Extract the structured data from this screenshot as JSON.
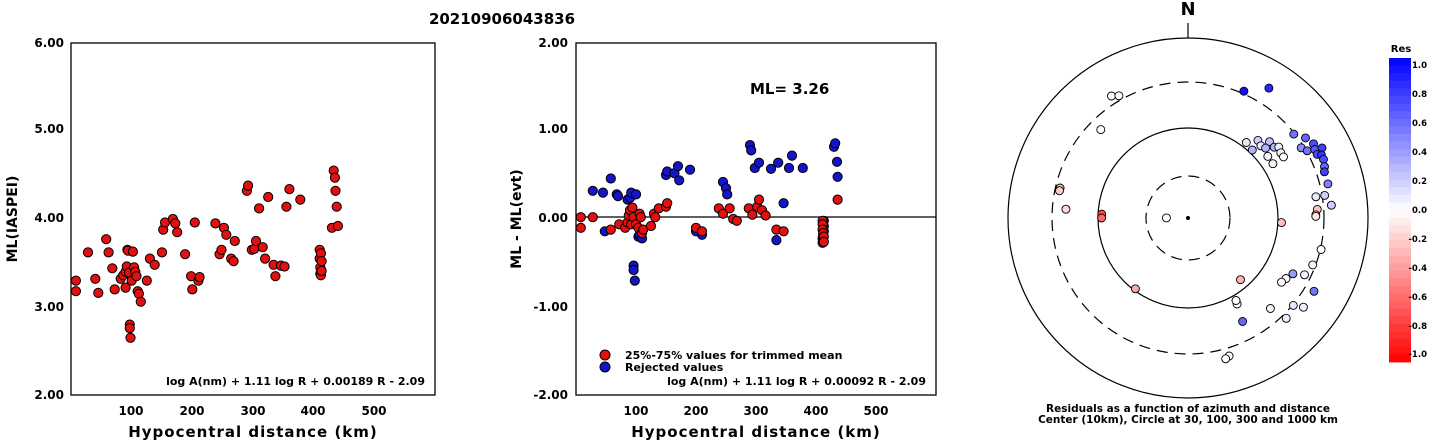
{
  "event_id": "20210906043836",
  "colors": {
    "accepted": "#e41010",
    "rejected": "#1414c8",
    "frame": "#000000"
  },
  "chart_data": [
    {
      "id": "ml-vs-distance",
      "type": "scatter",
      "xlabel": "Hypocentral distance (km)",
      "ylabel": "ML(IASPEI)",
      "xlim": [
        0,
        600
      ],
      "ylim": [
        2.0,
        6.0
      ],
      "xticks": [
        "100",
        "200",
        "300",
        "400",
        "500"
      ],
      "yticks": [
        "2.00",
        "3.00",
        "4.00",
        "5.00",
        "6.00"
      ],
      "formula": "log A(nm) + 1.11 log R + 0.00189 R - 2.09",
      "points": [
        [
          8,
          3.3
        ],
        [
          8,
          3.18
        ],
        [
          28,
          3.62
        ],
        [
          40,
          3.32
        ],
        [
          45,
          3.16
        ],
        [
          58,
          3.77
        ],
        [
          62,
          3.62
        ],
        [
          68,
          3.44
        ],
        [
          72,
          3.2
        ],
        [
          82,
          3.32
        ],
        [
          86,
          3.36
        ],
        [
          90,
          3.4
        ],
        [
          90,
          3.22
        ],
        [
          92,
          3.46
        ],
        [
          93,
          3.65
        ],
        [
          94,
          3.64
        ],
        [
          96,
          3.39
        ],
        [
          97,
          2.8
        ],
        [
          97,
          2.76
        ],
        [
          98,
          2.65
        ],
        [
          100,
          3.3
        ],
        [
          102,
          3.63
        ],
        [
          104,
          3.45
        ],
        [
          106,
          3.4
        ],
        [
          108,
          3.35
        ],
        [
          110,
          3.18
        ],
        [
          112,
          3.15
        ],
        [
          115,
          3.06
        ],
        [
          125,
          3.3
        ],
        [
          130,
          3.55
        ],
        [
          138,
          3.48
        ],
        [
          150,
          3.62
        ],
        [
          152,
          3.88
        ],
        [
          155,
          3.96
        ],
        [
          168,
          4.0
        ],
        [
          172,
          3.95
        ],
        [
          175,
          3.85
        ],
        [
          188,
          3.6
        ],
        [
          198,
          3.35
        ],
        [
          200,
          3.2
        ],
        [
          204,
          3.96
        ],
        [
          210,
          3.3
        ],
        [
          212,
          3.34
        ],
        [
          238,
          3.95
        ],
        [
          245,
          3.6
        ],
        [
          248,
          3.65
        ],
        [
          252,
          3.9
        ],
        [
          256,
          3.82
        ],
        [
          264,
          3.55
        ],
        [
          268,
          3.52
        ],
        [
          270,
          3.75
        ],
        [
          290,
          4.32
        ],
        [
          292,
          4.38
        ],
        [
          298,
          3.65
        ],
        [
          302,
          3.66
        ],
        [
          305,
          3.75
        ],
        [
          310,
          4.12
        ],
        [
          316,
          3.68
        ],
        [
          320,
          3.55
        ],
        [
          325,
          4.25
        ],
        [
          334,
          3.48
        ],
        [
          337,
          3.35
        ],
        [
          346,
          3.47
        ],
        [
          352,
          3.46
        ],
        [
          355,
          4.14
        ],
        [
          360,
          4.34
        ],
        [
          378,
          4.22
        ],
        [
          410,
          3.65
        ],
        [
          410,
          3.55
        ],
        [
          411,
          3.38
        ],
        [
          411,
          3.45
        ],
        [
          412,
          3.61
        ],
        [
          412,
          3.36
        ],
        [
          413,
          3.41
        ],
        [
          413,
          3.52
        ],
        [
          430,
          3.9
        ],
        [
          433,
          4.55
        ],
        [
          435,
          4.47
        ],
        [
          436,
          4.32
        ],
        [
          438,
          4.14
        ],
        [
          440,
          3.92
        ]
      ]
    },
    {
      "id": "residual-vs-distance",
      "type": "scatter",
      "xlabel": "Hypocentral distance (km)",
      "ylabel": "ML - ML(evt)",
      "xlim": [
        0,
        600
      ],
      "ylim": [
        -2.0,
        2.0
      ],
      "xticks": [
        "100",
        "200",
        "300",
        "400",
        "500"
      ],
      "yticks": [
        "-2.00",
        "-1.00",
        "0.00",
        "1.00",
        "2.00"
      ],
      "reference_line": 0.0,
      "annotation": "ML= 3.26",
      "legend": [
        {
          "label": "25%-75% values for trimmed mean",
          "color": "#e41010"
        },
        {
          "label": "Rejected values",
          "color": "#1414c8"
        }
      ],
      "formula": "log A(nm) + 1.11 log R + 0.00092 R - 2.09",
      "series": [
        {
          "name": "25%-75% values for trimmed mean",
          "points": [
            [
              8,
              0.02
            ],
            [
              8,
              -0.1
            ],
            [
              28,
              0.02
            ],
            [
              58,
              -0.12
            ],
            [
              72,
              -0.06
            ],
            [
              82,
              -0.1
            ],
            [
              86,
              -0.04
            ],
            [
              88,
              0.04
            ],
            [
              90,
              0.1
            ],
            [
              92,
              -0.06
            ],
            [
              94,
              0.13
            ],
            [
              96,
              0.02
            ],
            [
              100,
              -0.06
            ],
            [
              104,
              -0.1
            ],
            [
              106,
              0.06
            ],
            [
              108,
              0.02
            ],
            [
              110,
              -0.16
            ],
            [
              112,
              -0.12
            ],
            [
              125,
              -0.08
            ],
            [
              130,
              0.06
            ],
            [
              132,
              0.02
            ],
            [
              138,
              0.12
            ],
            [
              150,
              0.14
            ],
            [
              152,
              0.18
            ],
            [
              200,
              -0.1
            ],
            [
              210,
              -0.14
            ],
            [
              238,
              0.12
            ],
            [
              245,
              0.06
            ],
            [
              256,
              0.12
            ],
            [
              262,
              0.0
            ],
            [
              268,
              -0.02
            ],
            [
              288,
              0.12
            ],
            [
              294,
              0.05
            ],
            [
              302,
              0.14
            ],
            [
              305,
              0.22
            ],
            [
              310,
              0.1
            ],
            [
              316,
              0.04
            ],
            [
              334,
              -0.12
            ],
            [
              346,
              -0.14
            ],
            [
              411,
              -0.02
            ],
            [
              411,
              -0.06
            ],
            [
              411,
              -0.12
            ],
            [
              412,
              -0.16
            ],
            [
              413,
              -0.2
            ],
            [
              413,
              -0.26
            ],
            [
              436,
              0.22
            ]
          ]
        },
        {
          "name": "Rejected values",
          "points": [
            [
              28,
              0.32
            ],
            [
              45,
              0.3
            ],
            [
              48,
              -0.14
            ],
            [
              58,
              0.46
            ],
            [
              68,
              0.28
            ],
            [
              70,
              0.26
            ],
            [
              86,
              0.22
            ],
            [
              90,
              0.24
            ],
            [
              92,
              0.3
            ],
            [
              96,
              -0.53
            ],
            [
              96,
              -0.58
            ],
            [
              98,
              -0.7
            ],
            [
              100,
              0.28
            ],
            [
              104,
              -0.2
            ],
            [
              106,
              -0.18
            ],
            [
              110,
              -0.22
            ],
            [
              150,
              0.5
            ],
            [
              152,
              0.54
            ],
            [
              164,
              0.52
            ],
            [
              170,
              0.6
            ],
            [
              172,
              0.44
            ],
            [
              190,
              0.56
            ],
            [
              200,
              -0.14
            ],
            [
              210,
              -0.18
            ],
            [
              245,
              0.42
            ],
            [
              250,
              0.35
            ],
            [
              252,
              0.28
            ],
            [
              290,
              0.84
            ],
            [
              292,
              0.78
            ],
            [
              298,
              0.58
            ],
            [
              305,
              0.64
            ],
            [
              325,
              0.57
            ],
            [
              334,
              -0.24
            ],
            [
              337,
              0.64
            ],
            [
              346,
              0.18
            ],
            [
              355,
              0.58
            ],
            [
              360,
              0.72
            ],
            [
              378,
              0.58
            ],
            [
              411,
              -0.22
            ],
            [
              411,
              -0.27
            ],
            [
              412,
              -0.24
            ],
            [
              412,
              -0.18
            ],
            [
              413,
              -0.14
            ],
            [
              413,
              -0.08
            ],
            [
              413,
              -0.02
            ],
            [
              430,
              0.82
            ],
            [
              432,
              0.86
            ],
            [
              435,
              0.65
            ],
            [
              436,
              0.48
            ]
          ]
        }
      ]
    },
    {
      "id": "azimuth-map",
      "type": "polar-scatter",
      "north_label": "N",
      "rings": [
        "10 km (center)",
        "30",
        "100",
        "300",
        "1000"
      ],
      "caption_line1": "Residuals as a function of azimuth and distance",
      "caption_line2": "Center (10km), Circle at 30, 100, 300 and 1000 km",
      "colorbar_title": "Res",
      "colorbar_ticks": [
        "1.0",
        "0.8",
        "0.6",
        "0.4",
        "0.2",
        "0.0",
        "-0.2",
        "-0.4",
        "-0.6",
        "-0.8",
        "-1.0"
      ],
      "stations": [
        {
          "az": -89.7,
          "ring": 0.12,
          "res": 0.0
        },
        {
          "az": -32.1,
          "ring": 0.8,
          "res": 0.0
        },
        {
          "az": -29.5,
          "ring": 0.78,
          "res": 0.0
        },
        {
          "az": -44.6,
          "ring": 0.69,
          "res": 0.0
        },
        {
          "az": -76.8,
          "ring": 0.73,
          "res": -0.3
        },
        {
          "az": -78.0,
          "ring": 0.73,
          "res": -0.2
        },
        {
          "az": -85.9,
          "ring": 0.68,
          "res": -0.15
        },
        {
          "az": -87.4,
          "ring": 0.48,
          "res": -0.7
        },
        {
          "az": -90.0,
          "ring": 0.48,
          "res": -0.6
        },
        {
          "az": 23.8,
          "ring": 0.77,
          "res": 0.95
        },
        {
          "az": 31.9,
          "ring": 0.85,
          "res": 0.85
        },
        {
          "az": 37.7,
          "ring": 0.53,
          "res": 0.1
        },
        {
          "az": 43.4,
          "ring": 0.52,
          "res": 0.3
        },
        {
          "az": 42.0,
          "ring": 0.58,
          "res": 0.2
        },
        {
          "az": 45.3,
          "ring": 0.57,
          "res": 0.1
        },
        {
          "az": 46.9,
          "ring": 0.62,
          "res": 0.25
        },
        {
          "az": 48.0,
          "ring": 0.58,
          "res": 0.3
        },
        {
          "az": 52.3,
          "ring": 0.56,
          "res": 0.05
        },
        {
          "az": 50.6,
          "ring": 0.62,
          "res": 0.3
        },
        {
          "az": 52.0,
          "ring": 0.64,
          "res": 0.05
        },
        {
          "az": 57.4,
          "ring": 0.56,
          "res": 0.05
        },
        {
          "az": 54.9,
          "ring": 0.63,
          "res": 0.05
        },
        {
          "az": 57.4,
          "ring": 0.63,
          "res": 0.0
        },
        {
          "az": 51.6,
          "ring": 0.75,
          "res": 0.55
        },
        {
          "az": 55.7,
          "ring": 0.79,
          "res": 0.6
        },
        {
          "az": 58.2,
          "ring": 0.74,
          "res": 0.45
        },
        {
          "az": 60.6,
          "ring": 0.76,
          "res": 0.55
        },
        {
          "az": 59.4,
          "ring": 0.81,
          "res": 0.7
        },
        {
          "az": 61.6,
          "ring": 0.8,
          "res": 0.65
        },
        {
          "az": 63.8,
          "ring": 0.8,
          "res": 0.7
        },
        {
          "az": 62.4,
          "ring": 0.84,
          "res": 0.75
        },
        {
          "az": 64.7,
          "ring": 0.82,
          "res": 0.8
        },
        {
          "az": 66.6,
          "ring": 0.82,
          "res": 0.7
        },
        {
          "az": 69.4,
          "ring": 0.81,
          "res": 0.6
        },
        {
          "az": 71.3,
          "ring": 0.8,
          "res": 0.75
        },
        {
          "az": 76.3,
          "ring": 0.8,
          "res": 0.5
        },
        {
          "az": 80.6,
          "ring": 0.77,
          "res": 0.2
        },
        {
          "az": 84.9,
          "ring": 0.8,
          "res": 0.2
        },
        {
          "az": 80.6,
          "ring": 0.72,
          "res": 0.1
        },
        {
          "az": 86.2,
          "ring": 0.72,
          "res": -0.25
        },
        {
          "az": 88.6,
          "ring": 0.71,
          "res": -0.15
        },
        {
          "az": 89.3,
          "ring": 0.71,
          "res": -0.1
        },
        {
          "az": 92.8,
          "ring": 0.52,
          "res": -0.25
        },
        {
          "az": 103.3,
          "ring": 0.76,
          "res": 0.0
        },
        {
          "az": 110.6,
          "ring": 0.74,
          "res": -0.05
        },
        {
          "az": 116.0,
          "ring": 0.72,
          "res": 0.05
        },
        {
          "az": 118.0,
          "ring": 0.66,
          "res": 0.4
        },
        {
          "az": 121.7,
          "ring": 0.64,
          "res": 0.0
        },
        {
          "az": 124.5,
          "ring": 0.63,
          "res": 0.0
        },
        {
          "az": 120.2,
          "ring": 0.81,
          "res": 0.55
        },
        {
          "az": 127.7,
          "ring": 0.81,
          "res": 0.05
        },
        {
          "az": 135.6,
          "ring": 0.78,
          "res": 0.05
        },
        {
          "az": 129.7,
          "ring": 0.76,
          "res": 0.1
        },
        {
          "az": 137.7,
          "ring": 0.68,
          "res": 0.05
        },
        {
          "az": 150.3,
          "ring": 0.55,
          "res": 0.0
        },
        {
          "az": 149.8,
          "ring": 0.53,
          "res": 0.0
        },
        {
          "az": 139.6,
          "ring": 0.45,
          "res": -0.3
        },
        {
          "az": 152.2,
          "ring": 0.65,
          "res": 0.6
        },
        {
          "az": 163.4,
          "ring": 0.8,
          "res": 0.0
        },
        {
          "az": 165.0,
          "ring": 0.81,
          "res": 0.0
        },
        {
          "az": -143.4,
          "ring": 0.49,
          "res": -0.35
        }
      ]
    }
  ]
}
